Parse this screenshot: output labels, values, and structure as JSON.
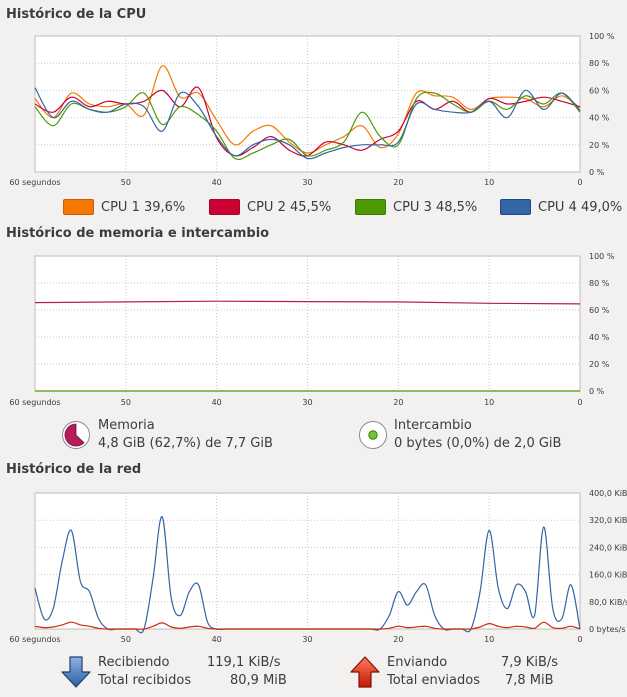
{
  "cpu": {
    "title": "Histórico de la CPU",
    "y_ticks": [
      "100 %",
      "80 %",
      "60 %",
      "40 %",
      "20 %",
      "0 %"
    ],
    "x_ticks": [
      "60 segundos",
      "50",
      "40",
      "30",
      "20",
      "10",
      "0"
    ],
    "legend": [
      {
        "label": "CPU 1",
        "value": "39,6%",
        "color": "#f57900",
        "border": "#ce5c00"
      },
      {
        "label": "CPU 2",
        "value": "45,5%",
        "color": "#cc0033",
        "border": "#9f0a2a"
      },
      {
        "label": "CPU 3",
        "value": "48,5%",
        "color": "#4e9a06",
        "border": "#3b7a04"
      },
      {
        "label": "CPU 4",
        "value": "49,0%",
        "color": "#3465a4",
        "border": "#204a87"
      }
    ]
  },
  "memory": {
    "title": "Histórico de memoria e intercambio",
    "y_ticks": [
      "100 %",
      "80 %",
      "60 %",
      "40 %",
      "20 %",
      "0 %"
    ],
    "x_ticks": [
      "60 segundos",
      "50",
      "40",
      "30",
      "20",
      "10",
      "0"
    ],
    "mem_label": "Memoria",
    "mem_value": "4,8 GiB (62,7%) de 7,7 GiB",
    "mem_color": "#b51c5c",
    "swap_label": "Intercambio",
    "swap_value": "0 bytes (0,0%) de 2,0 GiB",
    "swap_color": "#4e9a06"
  },
  "network": {
    "title": "Histórico de la red",
    "y_ticks": [
      "400,0 KiB/s",
      "320,0 KiB/s",
      "240,0 KiB/s",
      "160,0 KiB/s",
      "80,0 KiB/s",
      "0 bytes/s"
    ],
    "x_ticks": [
      "60 segundos",
      "50",
      "40",
      "30",
      "20",
      "10",
      "0"
    ],
    "recv_label": "Recibiendo",
    "recv_rate": "119,1 KiB/s",
    "recv_total_label": "Total recibidos",
    "recv_total": "80,9 MiB",
    "send_label": "Enviando",
    "send_rate": "7,9 KiB/s",
    "send_total_label": "Total enviados",
    "send_total": "7,8 MiB",
    "recv_color": "#3465a4",
    "send_color": "#cc2a0a"
  },
  "chart_data": [
    {
      "type": "line",
      "title": "Histórico de la CPU",
      "xlabel": "",
      "ylabel": "",
      "x": [
        60,
        58,
        56,
        54,
        52,
        50,
        48,
        46,
        44,
        42,
        40,
        38,
        36,
        34,
        32,
        30,
        28,
        26,
        24,
        22,
        20,
        18,
        16,
        14,
        12,
        10,
        8,
        6,
        4,
        2,
        0
      ],
      "xlim": [
        60,
        0
      ],
      "ylim": [
        0,
        100
      ],
      "grid": true,
      "series": [
        {
          "name": "CPU 1",
          "color": "#f57900",
          "values": [
            54,
            40,
            58,
            50,
            48,
            50,
            42,
            78,
            55,
            58,
            38,
            20,
            30,
            34,
            22,
            14,
            20,
            26,
            34,
            18,
            28,
            58,
            56,
            55,
            46,
            54,
            55,
            54,
            48,
            56,
            47
          ]
        },
        {
          "name": "CPU 2",
          "color": "#cc0033",
          "values": [
            50,
            44,
            55,
            48,
            52,
            50,
            52,
            60,
            48,
            62,
            25,
            12,
            18,
            26,
            16,
            12,
            22,
            20,
            16,
            24,
            30,
            52,
            46,
            52,
            44,
            54,
            50,
            52,
            55,
            52,
            48
          ]
        },
        {
          "name": "CPU 3",
          "color": "#4e9a06",
          "values": [
            48,
            34,
            50,
            46,
            44,
            48,
            58,
            35,
            48,
            42,
            30,
            10,
            14,
            20,
            24,
            12,
            16,
            22,
            44,
            26,
            20,
            54,
            58,
            50,
            44,
            52,
            46,
            56,
            50,
            58,
            44
          ]
        },
        {
          "name": "CPU 4",
          "color": "#3465a4",
          "values": [
            62,
            40,
            52,
            46,
            44,
            50,
            48,
            30,
            58,
            48,
            26,
            12,
            20,
            24,
            20,
            10,
            14,
            18,
            20,
            20,
            22,
            50,
            46,
            44,
            44,
            52,
            40,
            60,
            46,
            58,
            45
          ]
        }
      ]
    },
    {
      "type": "line",
      "title": "Histórico de memoria e intercambio",
      "xlabel": "",
      "ylabel": "",
      "x": [
        60,
        50,
        40,
        30,
        20,
        10,
        0
      ],
      "xlim": [
        60,
        0
      ],
      "ylim": [
        0,
        100
      ],
      "grid": true,
      "series": [
        {
          "name": "Memoria",
          "color": "#b51c5c",
          "values": [
            65.5,
            66,
            66.5,
            66.2,
            66,
            65,
            64.5
          ]
        },
        {
          "name": "Intercambio",
          "color": "#4e9a06",
          "values": [
            0,
            0,
            0,
            0,
            0,
            0,
            0
          ]
        }
      ]
    },
    {
      "type": "line",
      "title": "Histórico de la red",
      "xlabel": "",
      "ylabel": "",
      "x": [
        60,
        59,
        58,
        57,
        56,
        55,
        54,
        53,
        52,
        51,
        50,
        49,
        48,
        47,
        46,
        45,
        44,
        43,
        42,
        41,
        40,
        39,
        38,
        37,
        36,
        35,
        34,
        33,
        32,
        31,
        30,
        29,
        28,
        27,
        26,
        25,
        24,
        23,
        22,
        21,
        20,
        19,
        18,
        17,
        16,
        15,
        14,
        13,
        12,
        11,
        10,
        9,
        8,
        7,
        6,
        5,
        4,
        3,
        2,
        1,
        0
      ],
      "xlim": [
        60,
        0
      ],
      "ylim": [
        0,
        400
      ],
      "grid": true,
      "series": [
        {
          "name": "Recibiendo",
          "color": "#3465a4",
          "values": [
            120,
            30,
            60,
            200,
            290,
            140,
            110,
            30,
            0,
            0,
            0,
            0,
            0,
            150,
            330,
            90,
            40,
            110,
            130,
            20,
            0,
            0,
            0,
            0,
            0,
            0,
            0,
            0,
            0,
            0,
            0,
            0,
            0,
            0,
            0,
            0,
            0,
            0,
            0,
            40,
            110,
            70,
            110,
            130,
            40,
            0,
            0,
            0,
            0,
            110,
            290,
            120,
            60,
            130,
            110,
            40,
            300,
            60,
            30,
            130,
            0
          ]
        },
        {
          "name": "Enviando",
          "color": "#cc2a0a",
          "values": [
            8,
            4,
            6,
            12,
            20,
            12,
            8,
            2,
            0,
            0,
            0,
            0,
            0,
            8,
            18,
            6,
            2,
            6,
            8,
            2,
            0,
            0,
            0,
            0,
            0,
            0,
            0,
            0,
            0,
            0,
            0,
            0,
            0,
            0,
            0,
            0,
            0,
            0,
            0,
            2,
            8,
            4,
            6,
            8,
            2,
            0,
            0,
            0,
            0,
            6,
            16,
            8,
            4,
            8,
            6,
            2,
            20,
            4,
            2,
            8,
            0
          ]
        }
      ]
    }
  ]
}
